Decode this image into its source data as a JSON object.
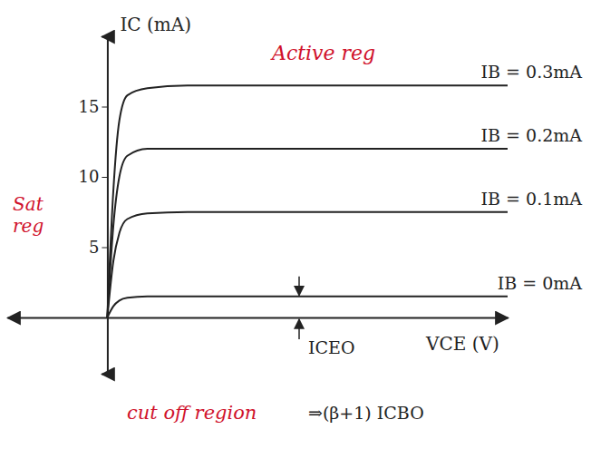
{
  "chart_data": {
    "type": "line",
    "x_label": "VCE (V)",
    "y_label": "IC (mA)",
    "x": [
      0,
      0.3,
      0.6,
      1,
      2,
      4,
      20
    ],
    "series": [
      {
        "name": "IB = 0.3mA",
        "color": "#222222",
        "values": [
          0,
          9,
          14,
          15.8,
          16.3,
          16.5,
          16.5
        ]
      },
      {
        "name": "IB = 0.2mA",
        "color": "#222222",
        "values": [
          0,
          6.5,
          10,
          11.5,
          12,
          12,
          12
        ]
      },
      {
        "name": "IB = 0.1mA",
        "color": "#222222",
        "values": [
          0,
          4,
          6,
          7,
          7.4,
          7.5,
          7.5
        ]
      },
      {
        "name": "IB = 0mA",
        "color": "#222222",
        "values": [
          0,
          0.8,
          1.2,
          1.4,
          1.5,
          1.5,
          1.5
        ]
      }
    ],
    "xlim": [
      -5,
      20
    ],
    "ylim": [
      -4,
      20
    ],
    "yticks": [
      5,
      10,
      15
    ],
    "tick_labels": "y",
    "grid": false,
    "annotations": [
      {
        "text": "Active reg",
        "color": "#d0112b"
      },
      {
        "text": "Sat reg",
        "color": "#d0112b"
      },
      {
        "text": "cut off region",
        "color": "#d0112b"
      },
      {
        "text": "ICEO",
        "color": "#222222"
      },
      {
        "text": "⇒(β+1) ICBO",
        "color": "#222222"
      }
    ]
  }
}
